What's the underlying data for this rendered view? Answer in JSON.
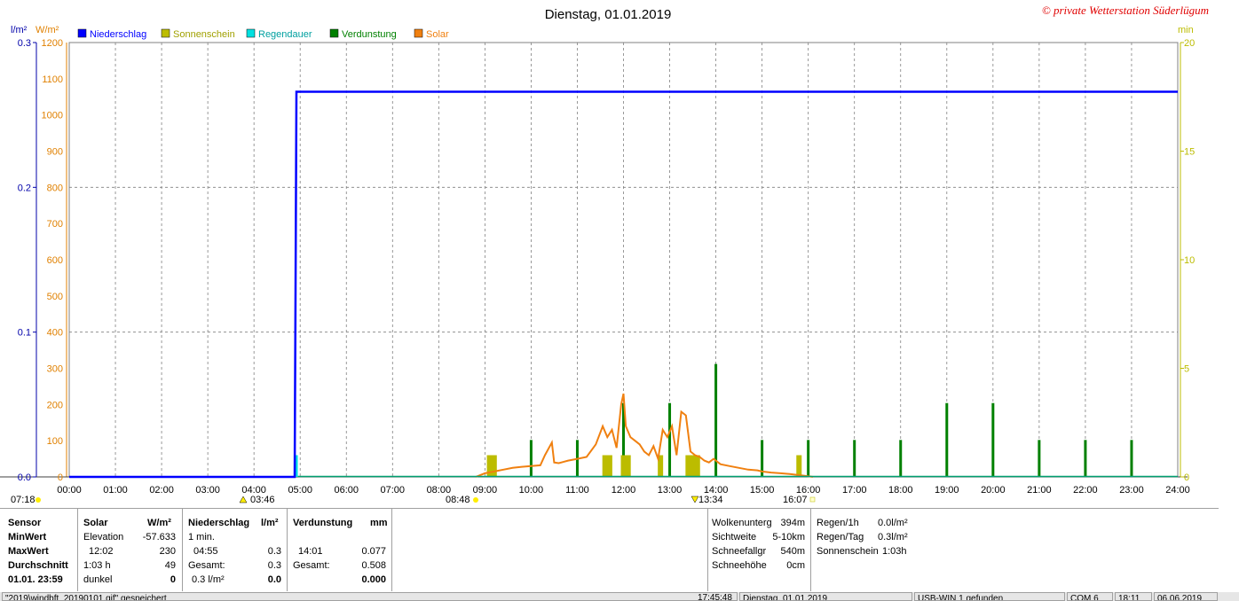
{
  "title": "Dienstag, 01.01.2019",
  "copyright": "© private Wetterstation Süderlügum",
  "legend": [
    {
      "label": "Niederschlag",
      "color": "#0000ff"
    },
    {
      "label": "Sonnenschein",
      "color": "#bcbc00"
    },
    {
      "label": "Regendauer",
      "color": "#00e0e0"
    },
    {
      "label": "Verdunstung",
      "color": "#008000"
    },
    {
      "label": "Solar",
      "color": "#f08010"
    }
  ],
  "axes": {
    "unit_rain": "l/m²",
    "unit_solar": "W/m²",
    "unit_min": "min",
    "rain_ticks": [
      "0.3",
      "0.2",
      "0.1",
      "0.0"
    ],
    "solar_ticks": [
      "1200",
      "1100",
      "1000",
      "900",
      "800",
      "700",
      "600",
      "500",
      "400",
      "300",
      "200",
      "100",
      "0"
    ],
    "min_ticks": [
      "20",
      "15",
      "10",
      "5",
      "0"
    ],
    "x_ticks": [
      "00:00",
      "01:00",
      "02:00",
      "03:00",
      "04:00",
      "05:00",
      "06:00",
      "07:00",
      "08:00",
      "09:00",
      "10:00",
      "11:00",
      "12:00",
      "13:00",
      "14:00",
      "15:00",
      "16:00",
      "17:00",
      "18:00",
      "19:00",
      "20:00",
      "21:00",
      "22:00",
      "23:00",
      "24:00"
    ]
  },
  "markers": {
    "sunrise": "07:18",
    "moon1": "03:46",
    "dawn": "08:48",
    "moon2": "13:34",
    "dusk": "16:07"
  },
  "chart_data": {
    "type": "line",
    "x_unit": "hour",
    "xlim": [
      0,
      24
    ],
    "ylim_left": [
      0,
      0.3
    ],
    "ylim_solar": [
      0,
      1200
    ],
    "ylim_right": [
      0,
      20
    ],
    "series": [
      {
        "name": "Niederschlag",
        "axis": "rain",
        "color": "#0000ff",
        "x": [
          0,
          4.88,
          4.9,
          4.92,
          24
        ],
        "values": [
          0.0,
          0.0,
          0.13,
          0.266,
          0.266
        ]
      },
      {
        "name": "Solar",
        "axis": "solar",
        "color": "#f08010",
        "x": [
          8.8,
          9.0,
          9.2,
          9.4,
          9.6,
          9.8,
          10.0,
          10.2,
          10.3,
          10.45,
          10.5,
          10.6,
          10.8,
          11.0,
          11.2,
          11.4,
          11.55,
          11.65,
          11.75,
          11.85,
          11.95,
          12.0,
          12.05,
          12.15,
          12.25,
          12.35,
          12.45,
          12.55,
          12.65,
          12.75,
          12.85,
          12.95,
          13.05,
          13.15,
          13.25,
          13.35,
          13.45,
          13.55,
          13.65,
          13.75,
          13.85,
          13.95,
          14.1,
          14.3,
          14.5,
          14.7,
          14.9,
          15.0,
          15.2,
          15.4,
          15.6,
          15.8,
          16.0,
          16.1
        ],
        "values": [
          0,
          10,
          15,
          20,
          25,
          28,
          30,
          32,
          60,
          95,
          40,
          38,
          45,
          50,
          55,
          90,
          140,
          110,
          130,
          80,
          200,
          230,
          140,
          110,
          100,
          90,
          70,
          60,
          85,
          50,
          130,
          110,
          140,
          60,
          180,
          170,
          70,
          60,
          55,
          45,
          40,
          50,
          35,
          30,
          25,
          20,
          18,
          15,
          12,
          10,
          8,
          5,
          2,
          0
        ]
      },
      {
        "name": "Verdunstung",
        "axis": "min",
        "color": "#008000",
        "bars": [
          {
            "x": 10.0,
            "value": 1.7
          },
          {
            "x": 11.0,
            "value": 1.7
          },
          {
            "x": 12.0,
            "value": 3.4
          },
          {
            "x": 13.0,
            "value": 3.4
          },
          {
            "x": 14.0,
            "value": 5.2
          },
          {
            "x": 15.0,
            "value": 1.7
          },
          {
            "x": 16.0,
            "value": 1.7
          },
          {
            "x": 17.0,
            "value": 1.7
          },
          {
            "x": 18.0,
            "value": 1.7
          },
          {
            "x": 19.0,
            "value": 3.4
          },
          {
            "x": 20.0,
            "value": 3.4
          },
          {
            "x": 21.0,
            "value": 1.7
          },
          {
            "x": 22.0,
            "value": 1.7
          },
          {
            "x": 23.0,
            "value": 1.7
          }
        ]
      },
      {
        "name": "Sonnenschein",
        "axis": "min",
        "color": "#bcbc00",
        "bars": [
          {
            "x": 9.1,
            "value": 1.0
          },
          {
            "x": 9.2,
            "value": 1.0
          },
          {
            "x": 11.6,
            "value": 1.0
          },
          {
            "x": 11.7,
            "value": 1.0
          },
          {
            "x": 12.0,
            "value": 1.0
          },
          {
            "x": 12.1,
            "value": 1.0
          },
          {
            "x": 12.8,
            "value": 1.0
          },
          {
            "x": 13.4,
            "value": 1.0
          },
          {
            "x": 13.5,
            "value": 1.0
          },
          {
            "x": 13.6,
            "value": 1.0
          },
          {
            "x": 15.8,
            "value": 1.0
          }
        ]
      },
      {
        "name": "Regendauer",
        "axis": "min",
        "color": "#00e0e0",
        "bars": [
          {
            "x": 4.92,
            "value": 1.0
          }
        ]
      }
    ]
  },
  "stats": {
    "col_sensor": {
      "header": "Sensor",
      "rows": [
        "MinWert",
        "MaxWert",
        "Durchschnitt",
        "01.01. 23:59"
      ]
    },
    "col_solar": {
      "header": "Solar",
      "unit": "W/m²",
      "rows": [
        [
          "Elevation",
          "-57.633"
        ],
        [
          "12:02",
          "230"
        ],
        [
          "1:03 h",
          "49"
        ],
        [
          "dunkel",
          "0"
        ]
      ]
    },
    "col_rain": {
      "header": "Niederschlag",
      "unit": "l/m²",
      "rows": [
        [
          "1 min.",
          ""
        ],
        [
          "04:55",
          "0.3"
        ],
        [
          "Gesamt:",
          "0.3"
        ],
        [
          "0.3 l/m²",
          "0.0"
        ]
      ]
    },
    "col_evap": {
      "header": "Verdunstung",
      "unit": "mm",
      "rows": [
        [
          "",
          ""
        ],
        [
          "14:01",
          "0.077"
        ],
        [
          "Gesamt:",
          "0.508"
        ],
        [
          "",
          "0.000"
        ]
      ]
    },
    "col_cloud": {
      "rows": [
        [
          "Wolkenunterg",
          "394m"
        ],
        [
          "Sichtweite",
          "5-10km"
        ],
        [
          "Schneefallgr",
          "540m"
        ],
        [
          "Schneehöhe",
          "0cm"
        ]
      ]
    },
    "col_rainrate": {
      "rows": [
        [
          "Regen/1h",
          "0.0l/m²"
        ],
        [
          "Regen/Tag",
          "0.3l/m²"
        ],
        [
          "Sonnenschein",
          "1:03h"
        ]
      ]
    }
  },
  "statusbar": {
    "file": "\"2019\\windbft_20190101.gif\" gespeichert",
    "time": "17:45:48",
    "date": "Dienstag, 01.01.2019",
    "usb": "USB-WIN 1 gefunden",
    "com": "COM 6",
    "clock": "18:11",
    "today": "06.06.2019"
  }
}
